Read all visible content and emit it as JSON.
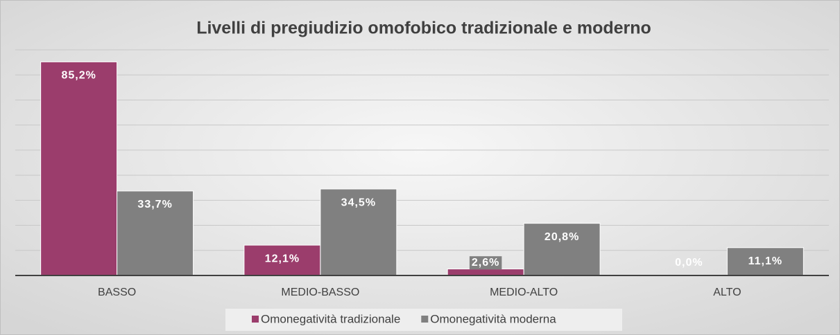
{
  "chart_data": {
    "type": "bar",
    "title": "Livelli di pregiudizio omofobico tradizionale e moderno",
    "categories": [
      "BASSO",
      "MEDIO-BASSO",
      "MEDIO-ALTO",
      "ALTO"
    ],
    "series": [
      {
        "name": "Omonegatività tradizionale",
        "color": "#9b3d6c",
        "values": [
          85.2,
          12.1,
          2.6,
          0.0
        ],
        "value_labels": [
          "85,2%",
          "12,1%",
          "2,6%",
          "0,0%"
        ]
      },
      {
        "name": "Omonegatività moderna",
        "color": "#808080",
        "values": [
          33.7,
          34.5,
          20.8,
          11.1
        ],
        "value_labels": [
          "33,7%",
          "34,5%",
          "20,8%",
          "11,1%"
        ]
      }
    ],
    "ylim": [
      0,
      90
    ],
    "yticks": [
      0,
      10,
      20,
      30,
      40,
      50,
      60,
      70,
      80,
      90
    ],
    "grid": true,
    "legend": "bottom"
  }
}
